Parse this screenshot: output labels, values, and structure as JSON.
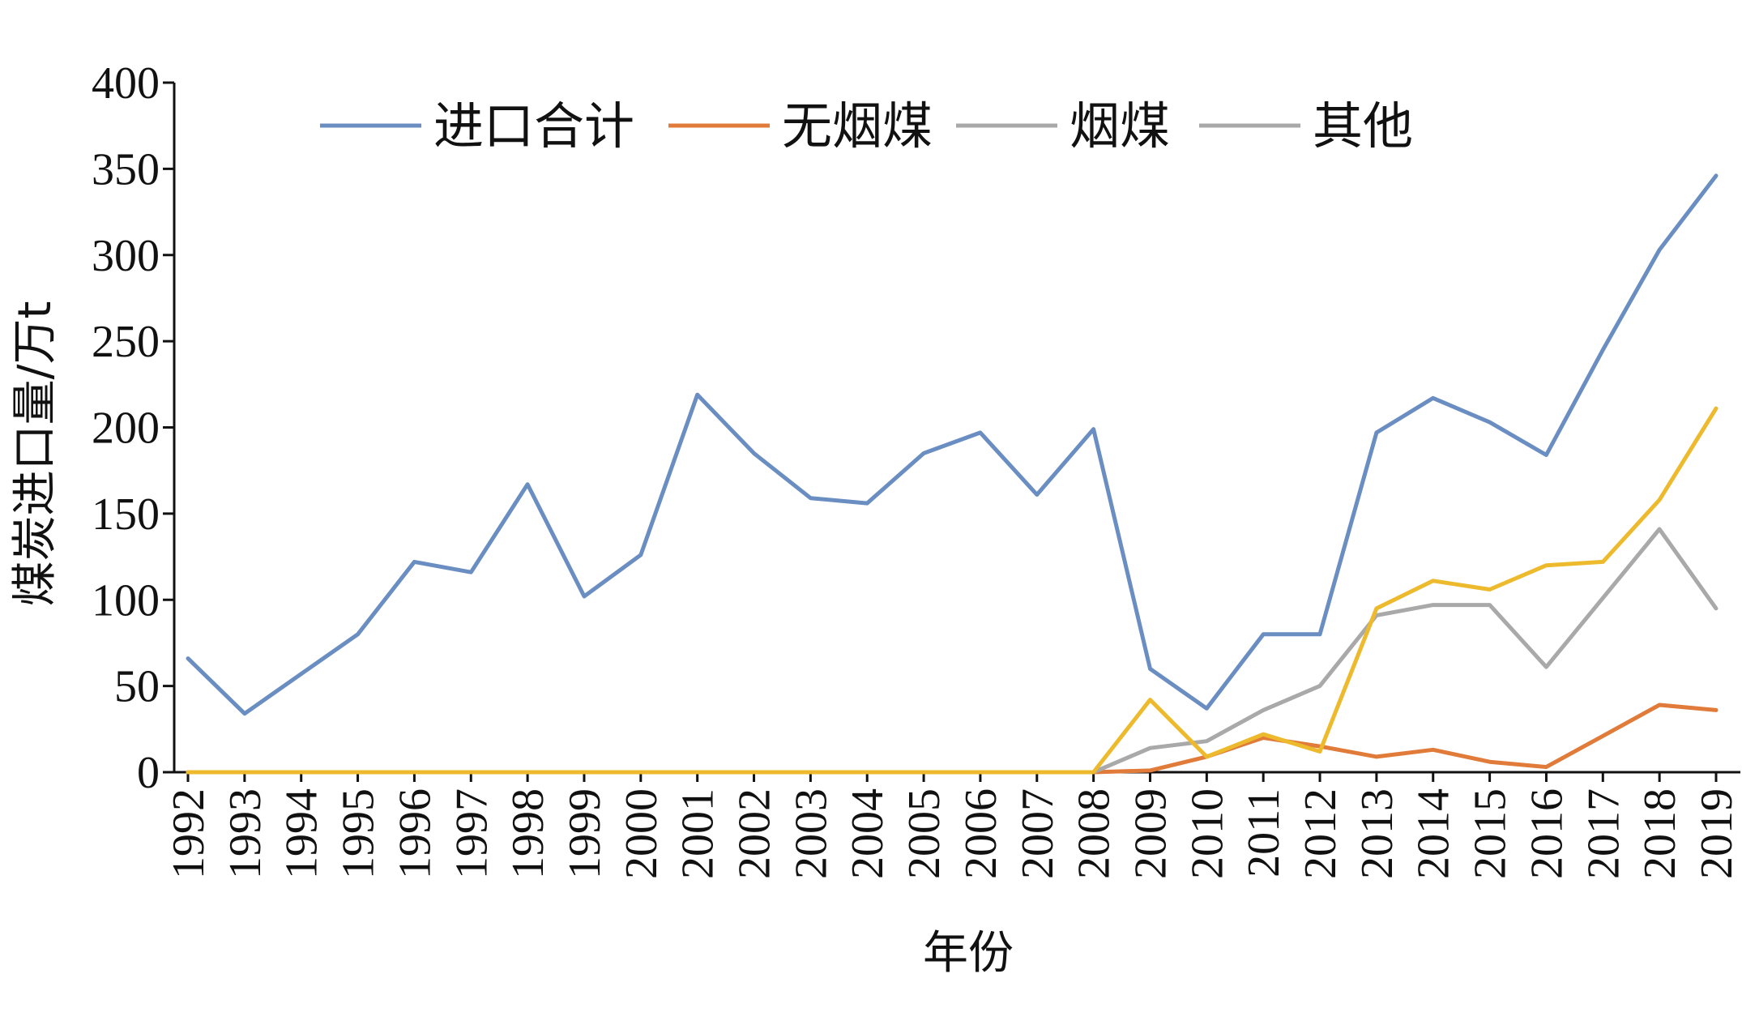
{
  "chart_data": {
    "type": "line",
    "title": "",
    "xlabel": "年份",
    "ylabel": "煤炭进口量/万t",
    "ylim": [
      0,
      400
    ],
    "yticks": [
      0,
      50,
      100,
      150,
      200,
      250,
      300,
      350,
      400
    ],
    "grid": false,
    "legend_position": "top",
    "categories": [
      "1992",
      "1993",
      "1994",
      "1995",
      "1996",
      "1997",
      "1998",
      "1999",
      "2000",
      "2001",
      "2002",
      "2003",
      "2004",
      "2005",
      "2006",
      "2007",
      "2008",
      "2009",
      "2010",
      "2011",
      "2012",
      "2013",
      "2014",
      "2015",
      "2016",
      "2017",
      "2018",
      "2019"
    ],
    "series": [
      {
        "name": "进口合计",
        "color": "#6A8EC2",
        "values": [
          66,
          34,
          57,
          80,
          122,
          116,
          167,
          102,
          126,
          219,
          185,
          159,
          156,
          185,
          197,
          161,
          199,
          60,
          37,
          80,
          80,
          197,
          217,
          203,
          184,
          245,
          303,
          346
        ]
      },
      {
        "name": "无烟煤",
        "color": "#E07B3A",
        "values": [
          0,
          0,
          0,
          0,
          0,
          0,
          0,
          0,
          0,
          0,
          0,
          0,
          0,
          0,
          0,
          0,
          0,
          1,
          9,
          20,
          15,
          9,
          13,
          6,
          3,
          21,
          39,
          36
        ]
      },
      {
        "name": "烟煤",
        "color": "#A9A9A9",
        "values": [
          0,
          0,
          0,
          0,
          0,
          0,
          0,
          0,
          0,
          0,
          0,
          0,
          0,
          0,
          0,
          0,
          0,
          14,
          18,
          36,
          50,
          91,
          97,
          97,
          61,
          101,
          141,
          95
        ]
      },
      {
        "name": "其他",
        "color": "#ECBA2C",
        "values": [
          0,
          0,
          0,
          0,
          0,
          0,
          0,
          0,
          0,
          0,
          0,
          0,
          0,
          0,
          0,
          0,
          0,
          42,
          9,
          22,
          12,
          95,
          111,
          106,
          120,
          122,
          158,
          211
        ]
      }
    ],
    "legend_swatch_colors": [
      "#6A8EC2",
      "#E07B3A",
      "#A9A9A9",
      "#A9A9A9"
    ]
  }
}
